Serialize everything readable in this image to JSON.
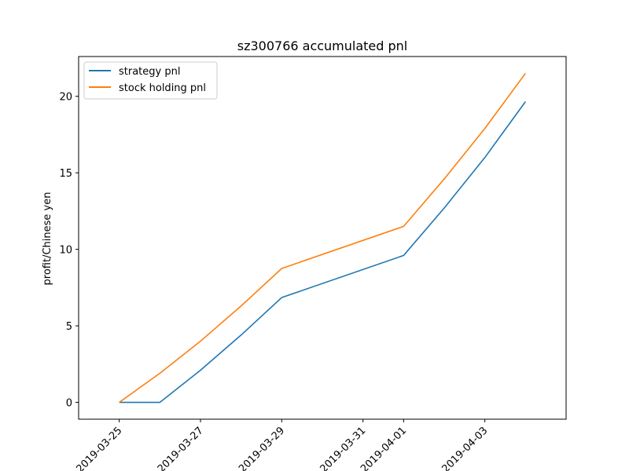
{
  "chart_data": {
    "type": "line",
    "title": "sz300766 accumulated pnl",
    "xlabel": "",
    "ylabel": "profit/Chinese yen",
    "x": [
      "2019-03-25",
      "2019-03-26",
      "2019-03-27",
      "2019-03-28",
      "2019-03-29",
      "2019-04-01",
      "2019-04-02",
      "2019-04-03",
      "2019-04-04"
    ],
    "xlim": [
      "2019-03-24",
      "2019-04-05"
    ],
    "ylim": [
      -1.1,
      22.6
    ],
    "xticks": [
      "2019-03-25",
      "2019-03-27",
      "2019-03-29",
      "2019-03-31",
      "2019-04-01",
      "2019-04-03"
    ],
    "yticks": [
      0,
      5,
      10,
      15,
      20
    ],
    "grid": false,
    "legend_position": "top-left",
    "series": [
      {
        "name": "strategy pnl",
        "color": "#1f77b4",
        "values": [
          0.0,
          0.0,
          2.1,
          4.4,
          6.85,
          9.6,
          12.7,
          16.0,
          19.65
        ]
      },
      {
        "name": "stock holding pnl",
        "color": "#ff7f0e",
        "values": [
          0.0,
          1.9,
          4.0,
          6.3,
          8.75,
          11.5,
          14.6,
          17.9,
          21.5
        ]
      }
    ]
  }
}
